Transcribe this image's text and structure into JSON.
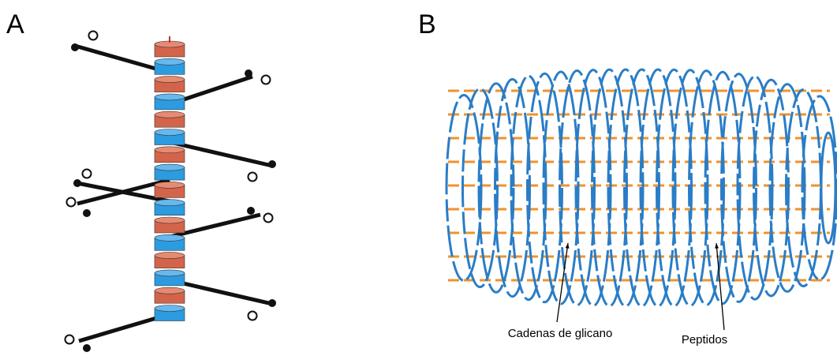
{
  "panels": [
    {
      "label": "A"
    },
    {
      "label": "B",
      "annotations": [
        "Cadenas de glicano",
        "Peptidos"
      ]
    }
  ]
}
